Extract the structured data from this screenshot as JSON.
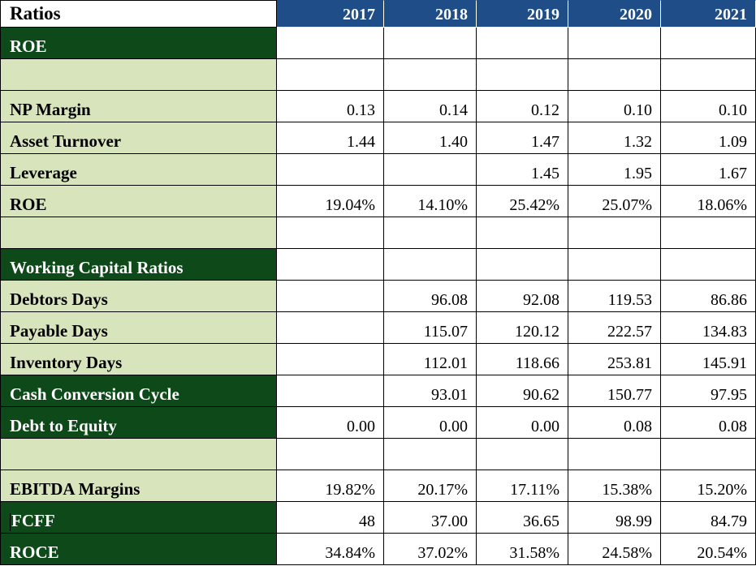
{
  "title": "Ratios",
  "years": [
    "2017",
    "2018",
    "2019",
    "2020",
    "2021"
  ],
  "rows": [
    {
      "label": "ROE",
      "style": "dark",
      "values": [
        "",
        "",
        "",
        "",
        ""
      ]
    },
    {
      "label": "",
      "style": "light",
      "values": [
        "",
        "",
        "",
        "",
        ""
      ]
    },
    {
      "label": "NP Margin",
      "style": "light",
      "values": [
        "0.13",
        "0.14",
        "0.12",
        "0.10",
        "0.10"
      ]
    },
    {
      "label": "Asset Turnover",
      "style": "light",
      "values": [
        "1.44",
        "1.40",
        "1.47",
        "1.32",
        "1.09"
      ]
    },
    {
      "label": "Leverage",
      "style": "light",
      "values": [
        "",
        "",
        "1.45",
        "1.95",
        "1.67"
      ]
    },
    {
      "label": "ROE",
      "style": "light",
      "values": [
        "19.04%",
        "14.10%",
        "25.42%",
        "25.07%",
        "18.06%"
      ]
    },
    {
      "label": "",
      "style": "light",
      "values": [
        "",
        "",
        "",
        "",
        ""
      ]
    },
    {
      "label": "Working Capital Ratios",
      "style": "dark",
      "values": [
        "",
        "",
        "",
        "",
        ""
      ]
    },
    {
      "label": "Debtors Days",
      "style": "light",
      "values": [
        "",
        "96.08",
        "92.08",
        "119.53",
        "86.86"
      ]
    },
    {
      "label": "Payable Days",
      "style": "light",
      "values": [
        "",
        "115.07",
        "120.12",
        "222.57",
        "134.83"
      ]
    },
    {
      "label": "Inventory Days",
      "style": "light",
      "values": [
        "",
        "112.01",
        "118.66",
        "253.81",
        "145.91"
      ]
    },
    {
      "label": "Cash Conversion Cycle",
      "style": "dark",
      "values": [
        "",
        "93.01",
        "90.62",
        "150.77",
        "97.95"
      ]
    },
    {
      "label": "Debt to Equity",
      "style": "dark",
      "values": [
        "0.00",
        "0.00",
        "0.00",
        "0.08",
        "0.08"
      ]
    },
    {
      "label": "",
      "style": "light",
      "values": [
        "",
        "",
        "",
        "",
        ""
      ]
    },
    {
      "label": "EBITDA Margins",
      "style": "light",
      "values": [
        "19.82%",
        "20.17%",
        "17.11%",
        "15.38%",
        "15.20%"
      ]
    },
    {
      "label": "FCFF",
      "style": "dark",
      "values": [
        "48",
        "37.00",
        "36.65",
        "98.99",
        "84.79"
      ]
    },
    {
      "label": "ROCE",
      "style": "dark",
      "values": [
        "34.84%",
        "37.02%",
        "31.58%",
        "24.58%",
        "20.54%"
      ]
    }
  ],
  "colors": {
    "header_blue": "#1f4d87",
    "dark_green": "#0e4a19",
    "light_green": "#d7e4bc"
  }
}
